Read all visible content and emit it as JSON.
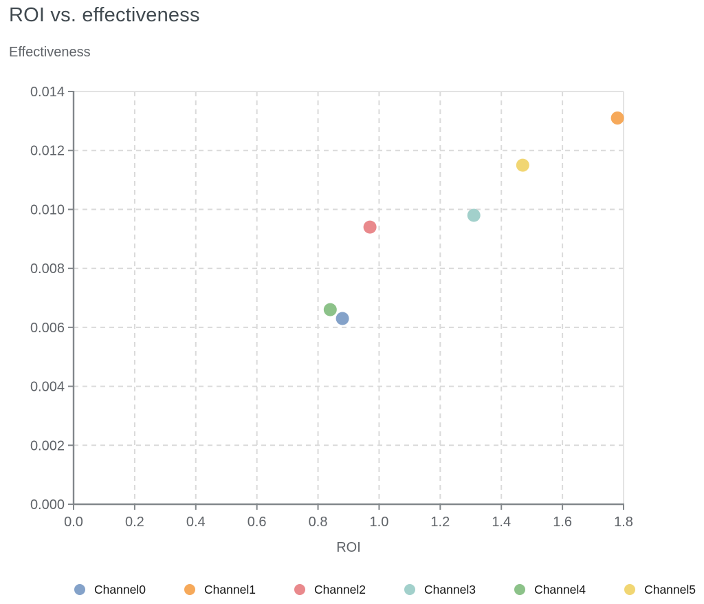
{
  "chart_data": {
    "type": "scatter",
    "title": "ROI vs. effectiveness",
    "xlabel": "ROI",
    "ylabel": "Effectiveness",
    "xlim": [
      0.0,
      1.8
    ],
    "ylim": [
      0.0,
      0.014
    ],
    "grid": true,
    "grid_style": "dashed",
    "legend_position": "bottom",
    "x_ticks": [
      {
        "value": 0.0,
        "label": "0.0"
      },
      {
        "value": 0.2,
        "label": "0.2"
      },
      {
        "value": 0.4,
        "label": "0.4"
      },
      {
        "value": 0.6,
        "label": "0.6"
      },
      {
        "value": 0.8,
        "label": "0.8"
      },
      {
        "value": 1.0,
        "label": "1.0"
      },
      {
        "value": 1.2,
        "label": "1.2"
      },
      {
        "value": 1.4,
        "label": "1.4"
      },
      {
        "value": 1.6,
        "label": "1.6"
      },
      {
        "value": 1.8,
        "label": "1.8"
      }
    ],
    "y_ticks": [
      {
        "value": 0.0,
        "label": "0.000"
      },
      {
        "value": 0.002,
        "label": "0.002"
      },
      {
        "value": 0.004,
        "label": "0.004"
      },
      {
        "value": 0.006,
        "label": "0.006"
      },
      {
        "value": 0.008,
        "label": "0.008"
      },
      {
        "value": 0.01,
        "label": "0.010"
      },
      {
        "value": 0.012,
        "label": "0.012"
      },
      {
        "value": 0.014,
        "label": "0.014"
      }
    ],
    "series": [
      {
        "name": "Channel0",
        "color": "#84a2c9",
        "x": 0.88,
        "y": 0.0063
      },
      {
        "name": "Channel1",
        "color": "#f6a95a",
        "x": 1.78,
        "y": 0.0131
      },
      {
        "name": "Channel2",
        "color": "#e9898c",
        "x": 0.97,
        "y": 0.0094
      },
      {
        "name": "Channel3",
        "color": "#a2d0cb",
        "x": 1.31,
        "y": 0.0098
      },
      {
        "name": "Channel4",
        "color": "#8cc289",
        "x": 0.84,
        "y": 0.0066
      },
      {
        "name": "Channel5",
        "color": "#f1d673",
        "x": 1.47,
        "y": 0.0115
      }
    ]
  },
  "colors": {
    "title_text": "#414a50",
    "axis_title_text": "#5f6368",
    "tick_text": "#5f6368",
    "axis_line": "#82878b",
    "grid_line": "#dadada",
    "plot_border": "#e3e3e3",
    "legend_text": "#151515",
    "background": "#ffffff"
  }
}
